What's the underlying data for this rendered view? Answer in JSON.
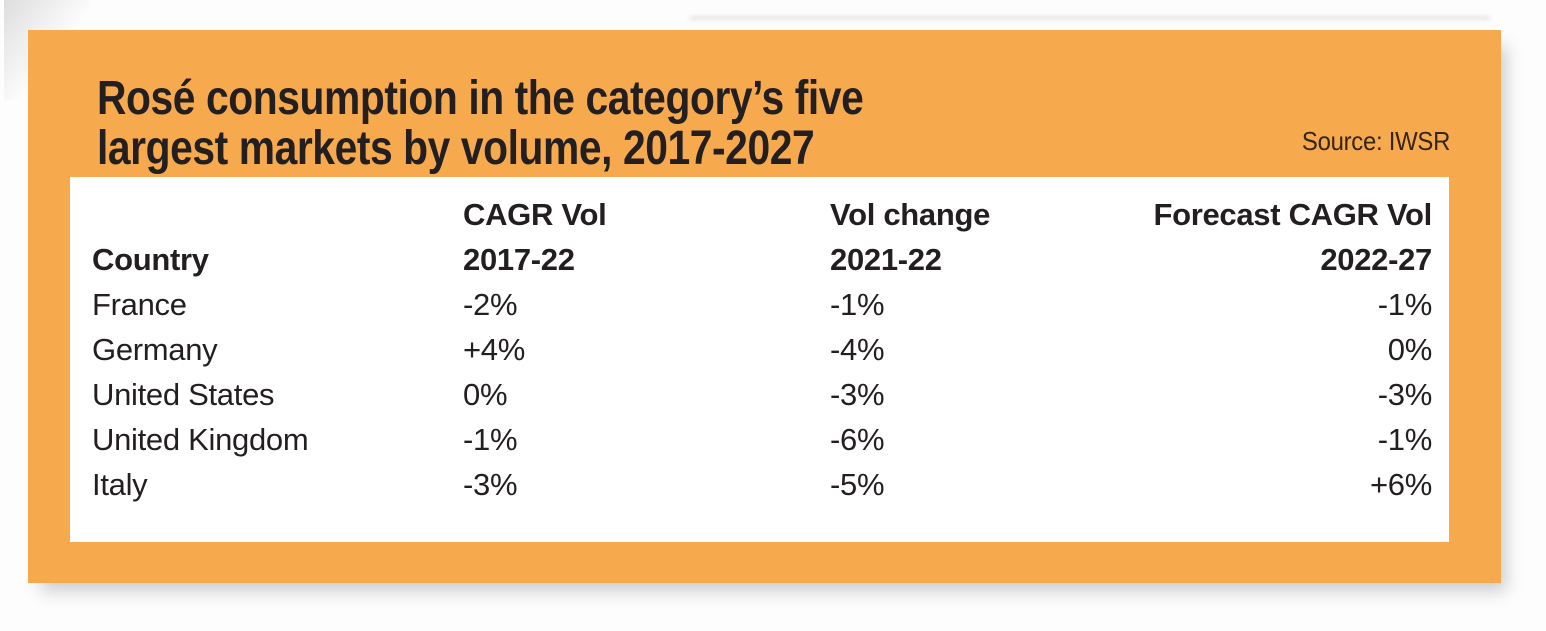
{
  "page": {
    "title_line1": "Rosé consumption in the category’s five",
    "title_line2": "largest markets by volume, 2017-2027",
    "source_label": "Source: IWSR"
  },
  "colors": {
    "panel_orange": "#F7AA4D",
    "card_white": "#FFFFFF",
    "text_dark": "#231F20"
  },
  "table": {
    "header_row_top": [
      "",
      "CAGR Vol",
      "Vol change",
      "Forecast CAGR Vol"
    ],
    "header_row_bottom": [
      "Country",
      "2017-22",
      "2021-22",
      "2022-27"
    ],
    "rows": [
      [
        "France",
        "-2%",
        "-1%",
        "-1%"
      ],
      [
        "Germany",
        "+4%",
        "-4%",
        "0%"
      ],
      [
        "United States",
        "0%",
        "-3%",
        "-3%"
      ],
      [
        "United Kingdom",
        "-1%",
        "-6%",
        "-1%"
      ],
      [
        "Italy",
        "-3%",
        "-5%",
        "+6%"
      ]
    ]
  },
  "chart_data": {
    "type": "table",
    "title": "Rosé consumption in the category’s five largest markets by volume, 2017-2027",
    "source": "IWSR",
    "columns": [
      "Country",
      "CAGR Vol 2017-22",
      "Vol change 2021-22",
      "Forecast CAGR Vol 2022-27"
    ],
    "rows": [
      {
        "country": "France",
        "cagr_vol_2017_22_pct": -2,
        "vol_change_2021_22_pct": -1,
        "forecast_cagr_vol_2022_27_pct": -1
      },
      {
        "country": "Germany",
        "cagr_vol_2017_22_pct": 4,
        "vol_change_2021_22_pct": -4,
        "forecast_cagr_vol_2022_27_pct": 0
      },
      {
        "country": "United States",
        "cagr_vol_2017_22_pct": 0,
        "vol_change_2021_22_pct": -3,
        "forecast_cagr_vol_2022_27_pct": -3
      },
      {
        "country": "United Kingdom",
        "cagr_vol_2017_22_pct": -1,
        "vol_change_2021_22_pct": -6,
        "forecast_cagr_vol_2022_27_pct": -1
      },
      {
        "country": "Italy",
        "cagr_vol_2017_22_pct": -3,
        "vol_change_2021_22_pct": -5,
        "forecast_cagr_vol_2022_27_pct": 6
      }
    ]
  }
}
